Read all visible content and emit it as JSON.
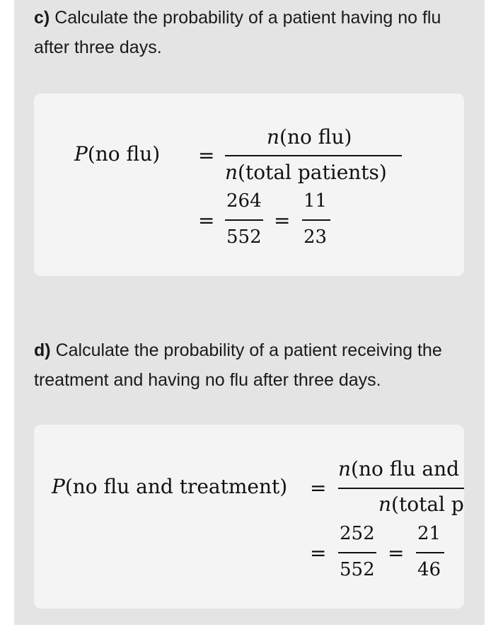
{
  "part_c": {
    "label": "c)",
    "question": "Calculate the probability of a patient having no flu after three days.",
    "lhs": "(no flu)",
    "numerator": "(no flu)",
    "denominator": "(total patients)",
    "frac1_num": "264",
    "frac1_den": "552",
    "frac2_num": "11",
    "frac2_den": "23"
  },
  "part_d": {
    "label": "d)",
    "question": "Calculate the probability of a patient receiving the treatment and having no flu after three days.",
    "lhs": "(no flu and treatment)",
    "numerator": "(no flu and t",
    "denominator": "(total pa",
    "frac1_num": "252",
    "frac1_den": "552",
    "frac2_num": "21",
    "frac2_den": "46"
  }
}
